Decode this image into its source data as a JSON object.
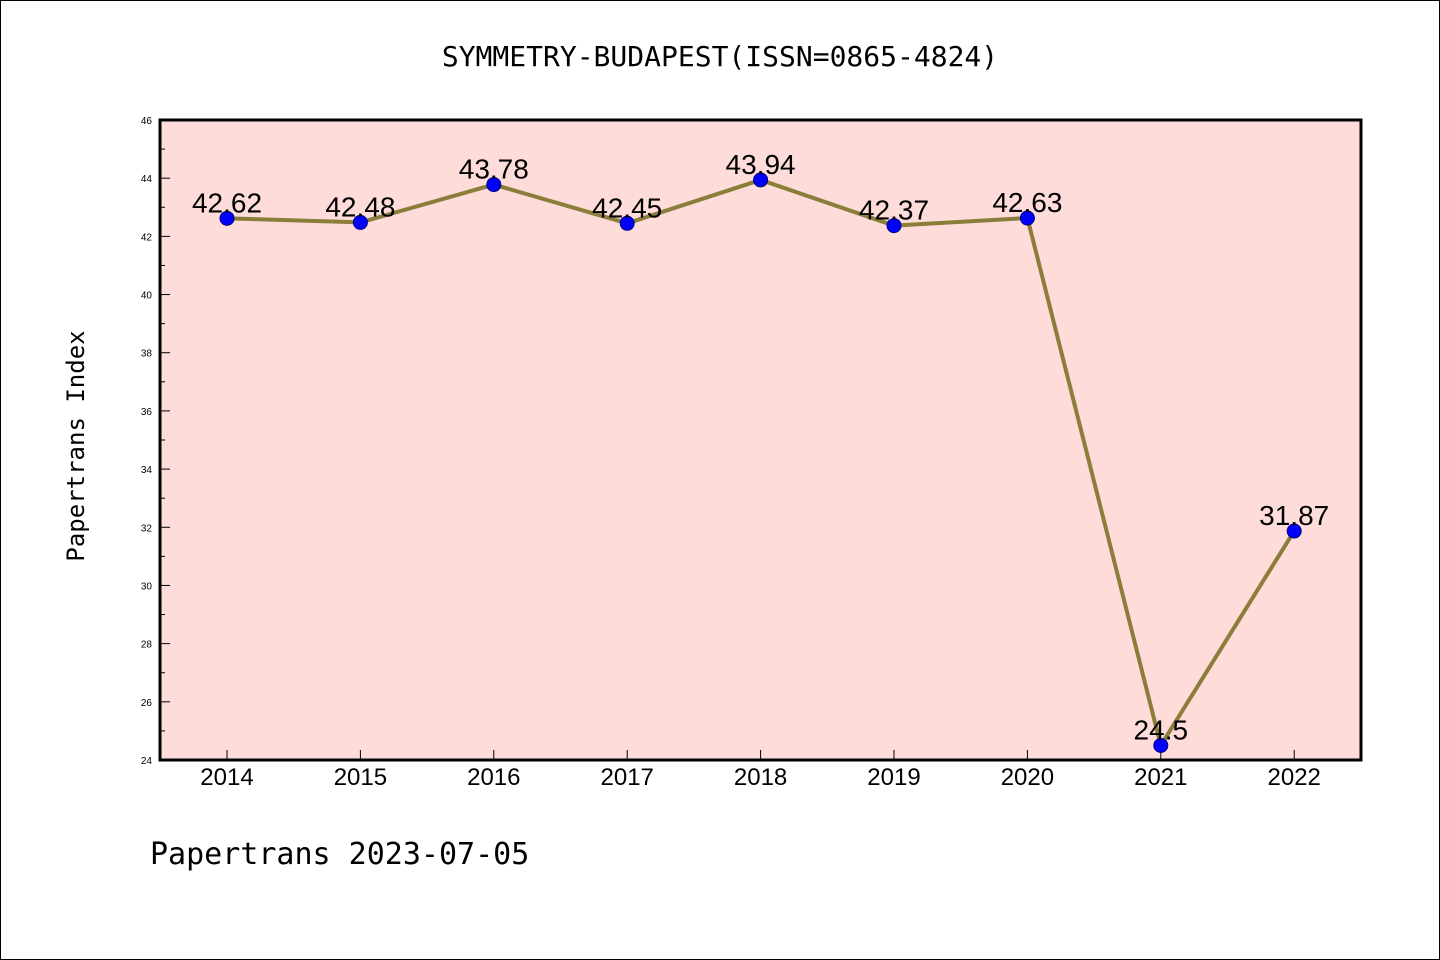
{
  "chart_data": {
    "type": "line",
    "title": "SYMMETRY-BUDAPEST(ISSN=0865-4824)",
    "xlabel": "",
    "ylabel": "Papertrans Index",
    "footer": "Papertrans 2023-07-05",
    "categories": [
      "2014",
      "2015",
      "2016",
      "2017",
      "2018",
      "2019",
      "2020",
      "2021",
      "2022"
    ],
    "values": [
      42.62,
      42.48,
      43.78,
      42.45,
      43.94,
      42.37,
      42.63,
      24.5,
      31.87
    ],
    "data_labels": [
      "42.62",
      "42.48",
      "43.78",
      "42.45",
      "43.94",
      "42.37",
      "42.63",
      "24.5",
      "31.87"
    ],
    "ylim": [
      24,
      46
    ],
    "yticks": [
      "24",
      "26",
      "28",
      "30",
      "32",
      "34",
      "36",
      "38",
      "40",
      "42",
      "44",
      "46"
    ],
    "grid": false,
    "colors": {
      "plot_background": "#fddcda",
      "line": "#8b7d3a",
      "marker": "#0000ff",
      "marker_edge": "#000080"
    }
  }
}
